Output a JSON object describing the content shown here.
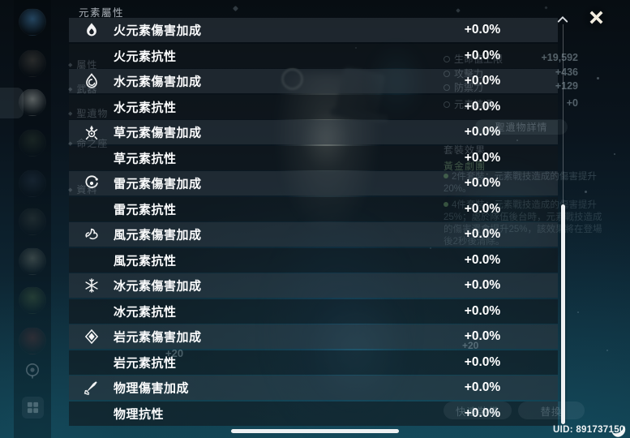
{
  "overlay": {
    "title": "元素屬性",
    "close_icon": "close-x-icon",
    "rows": [
      {
        "icon": "pyro-icon",
        "label": "火元素傷害加成",
        "value": "+0.0%"
      },
      {
        "icon": null,
        "label": "火元素抗性",
        "value": "+0.0%"
      },
      {
        "icon": "hydro-icon",
        "label": "水元素傷害加成",
        "value": "+0.0%"
      },
      {
        "icon": null,
        "label": "水元素抗性",
        "value": "+0.0%"
      },
      {
        "icon": "dendro-icon",
        "label": "草元素傷害加成",
        "value": "+0.0%"
      },
      {
        "icon": null,
        "label": "草元素抗性",
        "value": "+0.0%"
      },
      {
        "icon": "electro-icon",
        "label": "雷元素傷害加成",
        "value": "+0.0%"
      },
      {
        "icon": null,
        "label": "雷元素抗性",
        "value": "+0.0%"
      },
      {
        "icon": "anemo-icon",
        "label": "風元素傷害加成",
        "value": "+0.0%"
      },
      {
        "icon": null,
        "label": "風元素抗性",
        "value": "+0.0%"
      },
      {
        "icon": "cryo-icon",
        "label": "冰元素傷害加成",
        "value": "+0.0%"
      },
      {
        "icon": null,
        "label": "冰元素抗性",
        "value": "+0.0%"
      },
      {
        "icon": "geo-icon",
        "label": "岩元素傷害加成",
        "value": "+0.0%"
      },
      {
        "icon": null,
        "label": "岩元素抗性",
        "value": "+0.0%"
      },
      {
        "icon": "physical-icon",
        "label": "物理傷害加成",
        "value": "+0.0%"
      },
      {
        "icon": null,
        "label": "物理抗性",
        "value": "+0.0%"
      }
    ]
  },
  "sidebar": {
    "party_grid_icon": "grid-icon",
    "pin_icon": "pin-icon",
    "avatars": [
      {
        "icon": "wave-avatar-icon",
        "tint": "#4b8cc0"
      },
      {
        "icon": "character-avatar-icon",
        "tint": "#8a7f6e"
      },
      {
        "icon": "character-avatar-icon",
        "tint": "#cfd4cd"
      },
      {
        "icon": "character-avatar-icon",
        "tint": "#4c5f45"
      },
      {
        "icon": "character-avatar-icon",
        "tint": "#3d5068"
      },
      {
        "icon": "character-avatar-icon",
        "tint": "#5c665c"
      },
      {
        "icon": "character-avatar-icon",
        "tint": "#b9c2ad"
      },
      {
        "icon": "character-avatar-icon",
        "tint": "#6f9157"
      },
      {
        "icon": "character-avatar-icon",
        "tint": "#8f4444"
      }
    ]
  },
  "background": {
    "menu_items": [
      "屬性",
      "武器",
      "聖遺物",
      "命之座",
      "資料"
    ],
    "stats": [
      {
        "label": "生命值上限",
        "value": "+19,592"
      },
      {
        "label": "攻擊力",
        "value": "+436"
      },
      {
        "label": "防禦力",
        "value": "+129"
      },
      {
        "label": "元素精通",
        "value": "+0"
      }
    ],
    "artifact_detail_button": "聖遺物詳情",
    "set_header": "套裝效果",
    "set_name": "黃金劇團",
    "set_2pc": "2件套裝：元素戰技造成的傷害提升20%。",
    "set_4pc": "4件套裝：元素戰技造成的傷害提升25%；處於隊伍後台時，元素戰技造成的傷害還會提升25%，該效果將在登場後2秒後清除。",
    "weapon_level": "+20",
    "artifact_level": "+20",
    "quick_equip_button": "快速裝備",
    "swap_button": "替換"
  },
  "footer": {
    "uid": "UID: 891737150",
    "corner_icon": "crescent-icon"
  },
  "colors": {
    "scroll_thumb": "#eef1f3",
    "close_icon": "#f1ecdf",
    "row_light": "rgba(44,53,62,0.62)",
    "row_dark": "rgba(17,23,29,0.60)",
    "set_name_green": "rgba(150,195,140,0.36)",
    "bg_teal": "#11404f"
  }
}
